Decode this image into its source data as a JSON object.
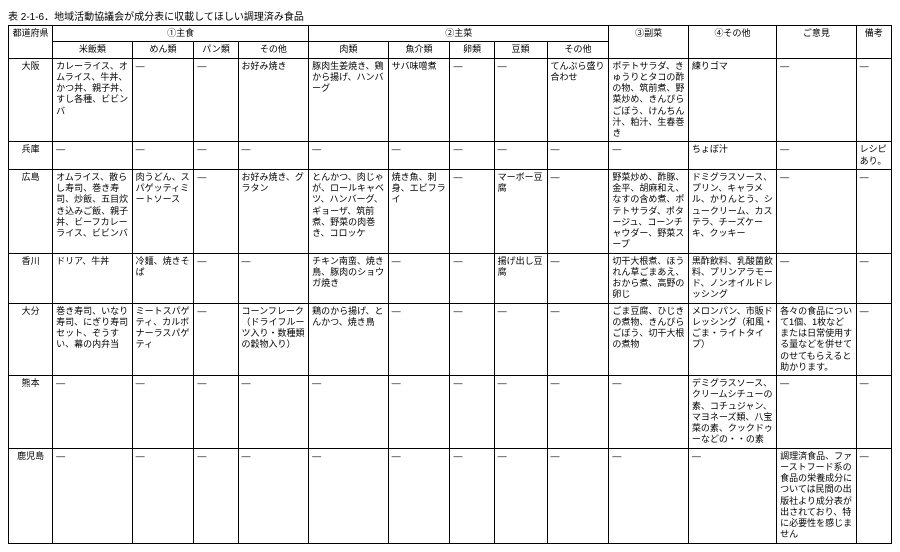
{
  "title": "表 2-1-6．地域活動協議会が成分表に収載してほしい調理済み食品",
  "header_groups": [
    "①主食",
    "②主菜",
    "③副菜",
    "④その他",
    "ご意見",
    "備考"
  ],
  "header_cols": [
    "都道府県",
    "米飯類",
    "めん類",
    "パン類",
    "その他",
    "肉類",
    "魚介類",
    "卵類",
    "豆類",
    "その他"
  ],
  "rows": [
    {
      "pref": "大阪",
      "cells": [
        "カレーライス、オムライス、牛丼、かつ丼、親子丼、すし各種、ビビンバ",
        "—",
        "—",
        "お好み焼き",
        "豚肉生姜焼き、鶏から揚げ、ハンバーグ",
        "サバ味噌煮",
        "—",
        "—",
        "てんぷら盛り合わせ",
        "ポテトサラダ、きゅうりとタコの酢の物、筑前煮、野菜炒め、きんぴらごぼう、けんちん汁、粕汁、生春巻き",
        "練りゴマ",
        "—",
        "—"
      ]
    },
    {
      "pref": "兵庫",
      "cells": [
        "—",
        "—",
        "—",
        "—",
        "—",
        "—",
        "—",
        "—",
        "—",
        "—",
        "ちょぼ汁",
        "—",
        "レシピあり。"
      ]
    },
    {
      "pref": "広島",
      "cells": [
        "オムライス、散らし寿司、巻き寿司、炒飯、五目炊き込みご飯、親子丼、ビーフカレーライス、ビビンバ",
        "肉うどん、スパゲッティミートソース",
        "—",
        "お好み焼き、グラタン",
        "とんかつ、肉じゃが、ロールキャベツ、ハンバーグ、ギョーザ、筑前煮、野菜の肉巻き、コロッケ",
        "焼き魚、刺身、エビフライ",
        "—",
        "マーボー豆腐",
        "—",
        "野菜炒め、酢豚、金平、胡麻和え、なすの含め煮、ポテトサラダ、ポタージュ、コーンチャウダー、野菜スープ",
        "ドミグラスソース、プリン、キャラメル、かりんとう、シュークリーム、カステラ、チーズケーキ、クッキー",
        "—",
        "—"
      ]
    },
    {
      "pref": "香川",
      "cells": [
        "ドリア、牛丼",
        "冷麺、焼きそば",
        "—",
        "—",
        "チキン南蛮、焼き鳥、豚肉のショウガ焼き",
        "—",
        "—",
        "揚げ出し豆腐",
        "—",
        "切干大根煮、ほうれん草ごまあえ、おから煮、高野の卵じ",
        "黒酢飲料、乳酸菌飲料、プリンアラモード、ノンオイルドレッシング",
        "—",
        "—"
      ]
    },
    {
      "pref": "大分",
      "cells": [
        "巻き寿司、いなり寿司、にぎり寿司セット、ぞうすい、幕の内弁当",
        "ミートスパゲティ、カルボナーラスパゲティ",
        "—",
        "コーンフレーク（ドライフルーツ入り・数種類の穀物入り）",
        "鶏のから揚げ、とんかつ、焼き鳥",
        "—",
        "—",
        "—",
        "—",
        "ごま豆腐、ひじきの煮物、きんぴらごぼう、切干大根の煮物",
        "メロンパン、市販ドレッシング（和風・ごま・ライトタイプ）",
        "各々の食品について1個、1枚などまたは日常使用する量などを併せてのせてもらえると助かります。",
        "—"
      ]
    },
    {
      "pref": "熊本",
      "cells": [
        "—",
        "—",
        "—",
        "—",
        "—",
        "—",
        "—",
        "—",
        "—",
        "—",
        "デミグラスソース、クリームシチューの素、コチュジャン、マヨネーズ類、八宝菜の素、クックドゥーなどの・・の素",
        "—",
        "—"
      ]
    },
    {
      "pref": "鹿児島",
      "cells": [
        "—",
        "—",
        "—",
        "—",
        "—",
        "—",
        "—",
        "—",
        "—",
        "—",
        "—",
        "調理済食品、ファーストフード系の食品の栄養成分については民間の出版社より成分表が出されており、特に必要性を感じません",
        "—"
      ]
    }
  ],
  "col_widths_pct": [
    5,
    9,
    7,
    5,
    8,
    9,
    7,
    5,
    6,
    7,
    9,
    10,
    9,
    4
  ],
  "styling": {
    "font_size_pt": 9,
    "title_font_size_pt": 10,
    "border_color": "#000000",
    "background_color": "#ffffff",
    "text_color": "#000000"
  }
}
